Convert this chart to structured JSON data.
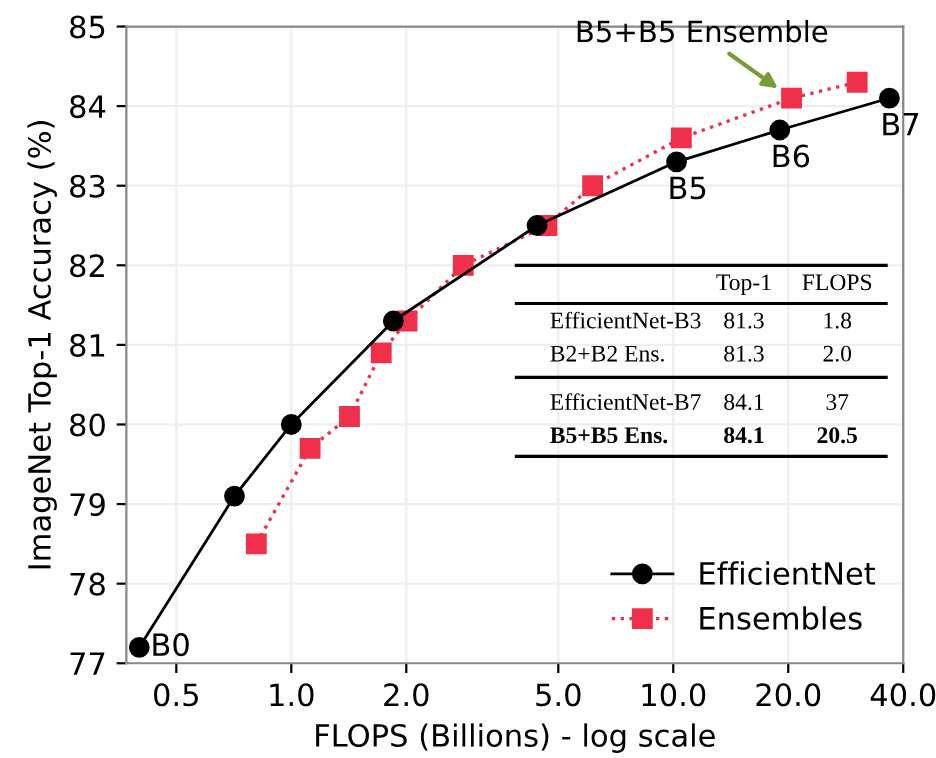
{
  "chart_data": {
    "type": "line",
    "xlabel": "FLOPS (Billions) - log scale",
    "ylabel": "ImageNet Top-1 Accuracy (%)",
    "log": "x",
    "grid": true,
    "legend": "bottom right",
    "xlim": [
      0.37,
      40
    ],
    "ylim": [
      77,
      85
    ],
    "xticks": [
      0.5,
      {
        "value": 1,
        "label": "1.0"
      },
      {
        "value": 2,
        "label": "2.0"
      },
      {
        "value": 5,
        "label": "5.0"
      },
      {
        "value": 10,
        "label": "10.0"
      },
      {
        "value": 20,
        "label": "20.0"
      },
      {
        "value": 40,
        "label": "40.0"
      }
    ],
    "yticks": [
      77,
      78,
      79,
      80,
      81,
      82,
      83,
      84,
      85
    ],
    "series": [
      {
        "name": "EfficientNet",
        "color": "#000000",
        "marker": "circle",
        "line_style": "solid",
        "x": [
          0.4,
          0.71,
          1.0,
          1.85,
          4.4,
          10.2,
          19.0,
          36.8
        ],
        "values": [
          77.2,
          79.1,
          80.0,
          81.3,
          82.5,
          83.3,
          83.7,
          84.1
        ]
      },
      {
        "name": "Ensembles",
        "color": "#f0304a",
        "marker": "square",
        "line_style": "dotted",
        "x": [
          0.81,
          1.12,
          1.42,
          1.72,
          2.01,
          2.82,
          4.67,
          6.15,
          10.5,
          20.4,
          30.3
        ],
        "values": [
          78.5,
          79.7,
          80.1,
          80.9,
          81.3,
          82.0,
          82.5,
          83.0,
          83.6,
          84.1,
          84.3
        ]
      }
    ],
    "annotations": [
      {
        "text": "B5+B5 Ensemble",
        "x": 20.4,
        "y": 84.1
      },
      {
        "text": "B0",
        "x": 0.4,
        "y": 77.2
      },
      {
        "text": "B5",
        "x": 10.2,
        "y": 83.3
      },
      {
        "text": "B6",
        "x": 19.0,
        "y": 83.7
      },
      {
        "text": "B7",
        "x": 36.8,
        "y": 84.1
      },
      "Top-1",
      "FLOPS",
      "EfficientNet-B3",
      "81.3",
      "1.8",
      "B2+B2 Ens.",
      "81.3",
      "2.0",
      "EfficientNet-B7",
      "84.1",
      "37",
      "B5+B5 Ens.",
      "84.1",
      "20.5"
    ]
  }
}
